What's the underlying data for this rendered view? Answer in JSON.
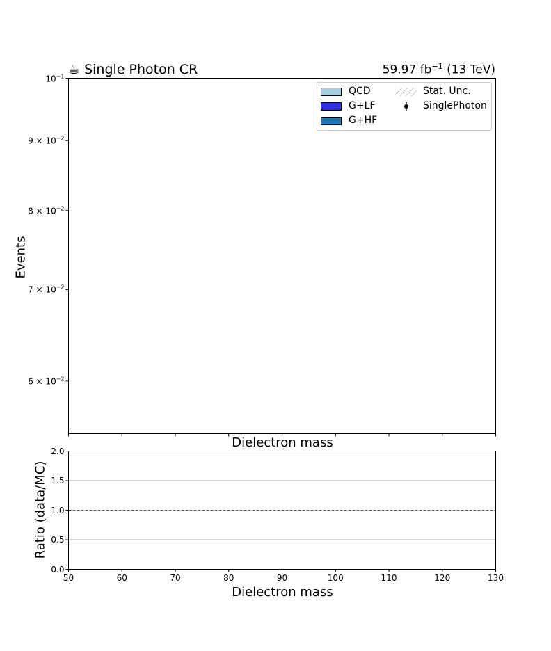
{
  "title_left": "☕ Single Photon CR",
  "title_right_main": "59.97 fb",
  "title_right_sup": "−1",
  "title_right_tail": " (13 TeV)",
  "chart_data": [
    {
      "type": "bar",
      "panel": "main",
      "title": "",
      "xlabel": "Dielectron mass",
      "ylabel": "Events",
      "xlim": [
        50,
        130
      ],
      "ylim": [
        0.0549,
        0.1
      ],
      "yscale": "log",
      "yticks": [
        {
          "value": 0.1,
          "label": "10",
          "exp": "−1",
          "mant": ""
        },
        {
          "value": 0.09,
          "label": "10",
          "exp": "−2",
          "mant": "9 × "
        },
        {
          "value": 0.08,
          "label": "10",
          "exp": "−2",
          "mant": "8 × "
        },
        {
          "value": 0.07,
          "label": "10",
          "exp": "−2",
          "mant": "7 × "
        },
        {
          "value": 0.06,
          "label": "10",
          "exp": "−2",
          "mant": "6 × "
        }
      ],
      "xticks": [
        50,
        60,
        70,
        80,
        90,
        100,
        110,
        120,
        130
      ],
      "series": [],
      "legend": {
        "placement": "top-right",
        "entries": [
          {
            "name": "QCD",
            "kind": "fill",
            "color": "#a6cee3"
          },
          {
            "name": "G+LF",
            "kind": "fill",
            "color": "#3030e0"
          },
          {
            "name": "G+HF",
            "kind": "fill",
            "color": "#1f78b4"
          },
          {
            "name": "Stat. Unc.",
            "kind": "hatch",
            "color": "#888888"
          },
          {
            "name": "SinglePhoton",
            "kind": "errorbar",
            "color": "#000000"
          }
        ]
      }
    },
    {
      "type": "line",
      "panel": "ratio",
      "xlabel": "Dielectron mass",
      "ylabel": "Ratio (data/MC)",
      "xlim": [
        50,
        130
      ],
      "ylim": [
        0.0,
        2.0
      ],
      "yticks": [
        0.0,
        0.5,
        1.0,
        1.5,
        2.0
      ],
      "ytick_labels": [
        "0.0",
        "0.5",
        "1.0",
        "1.5",
        "2.0"
      ],
      "xticks": [
        50,
        60,
        70,
        80,
        90,
        100,
        110,
        120,
        130
      ],
      "grid": "horizontal",
      "reference_line": 1.0,
      "series": []
    }
  ]
}
